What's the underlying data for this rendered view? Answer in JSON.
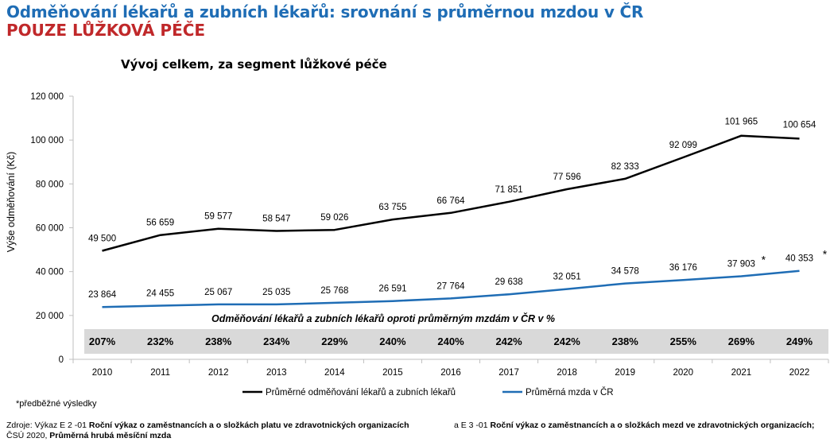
{
  "header": {
    "title": "Odměňování lékařů a zubních lékařů: srovnání s průměrnou mzdou v ČR",
    "subtitle": "POUZE LŮŽKOVÁ PÉČE"
  },
  "colors": {
    "title_blue": "#1f6db5",
    "subtitle_red": "#c0282a",
    "doctors_line": "#000000",
    "wage_line": "#1f6db5",
    "ratio_band": "#d9d9d9"
  },
  "chart_data": {
    "type": "line",
    "title": "Vývoj celkem, za segment lůžkové péče",
    "xlabel": "",
    "ylabel": "Výše odměňování (Kč)",
    "categories": [
      "2010",
      "2011",
      "2012",
      "2013",
      "2014",
      "2015",
      "2016",
      "2017",
      "2018",
      "2019",
      "2020",
      "2021",
      "2022"
    ],
    "ylim": [
      0,
      120000
    ],
    "yticks": [
      0,
      20000,
      40000,
      60000,
      80000,
      100000,
      120000
    ],
    "ytick_labels": [
      "0",
      "20 000",
      "40 000",
      "60 000",
      "80 000",
      "100 000",
      "120 000"
    ],
    "series": [
      {
        "name": "Průměrné odměňování lékařů a zubních lékařů",
        "color": "#000000",
        "values": [
          49500,
          56659,
          59577,
          58547,
          59026,
          63755,
          66764,
          71851,
          77596,
          82333,
          92099,
          101965,
          100654
        ],
        "labels": [
          "49 500",
          "56 659",
          "59 577",
          "58 547",
          "59 026",
          "63 755",
          "66 764",
          "71 851",
          "77 596",
          "82 333",
          "92 099",
          "101 965",
          "100 654"
        ]
      },
      {
        "name": "Průměrná mzda v ČR",
        "color": "#1f6db5",
        "values": [
          23864,
          24455,
          25067,
          25035,
          25768,
          26591,
          27764,
          29638,
          32051,
          34578,
          36176,
          37903,
          40353
        ],
        "labels": [
          "23 864",
          "24 455",
          "25 067",
          "25 035",
          "25 768",
          "26 591",
          "27 764",
          "29 638",
          "32 051",
          "34 578",
          "36 176",
          "37 903",
          "40 353"
        ]
      }
    ],
    "preliminary_marker": "*",
    "ratio": {
      "title": "Odměňování lékařů a zubních lékařů oproti průměrným mzdám v ČR v %",
      "labels": [
        "207%",
        "232%",
        "238%",
        "234%",
        "229%",
        "240%",
        "240%",
        "242%",
        "242%",
        "238%",
        "255%",
        "269%",
        "249%"
      ]
    },
    "legend_position": "bottom",
    "grid": false
  },
  "footnote": "*předběžné výsledky",
  "source": {
    "prefix": "Zdroje: Výkaz E 2 -01 ",
    "part1": "Roční výkaz o zaměstnancích a o složkách platu ve zdravotnických organizacích",
    "mid": "a E 3 -01 ",
    "part2": "Roční výkaz o zaměstnancích a o složkách mezd ve zdravotnických organizacích;",
    "line2_prefix": "ČSÚ 2020, ",
    "line2_bold": "Průměrná hrubá měsíční mzda"
  }
}
